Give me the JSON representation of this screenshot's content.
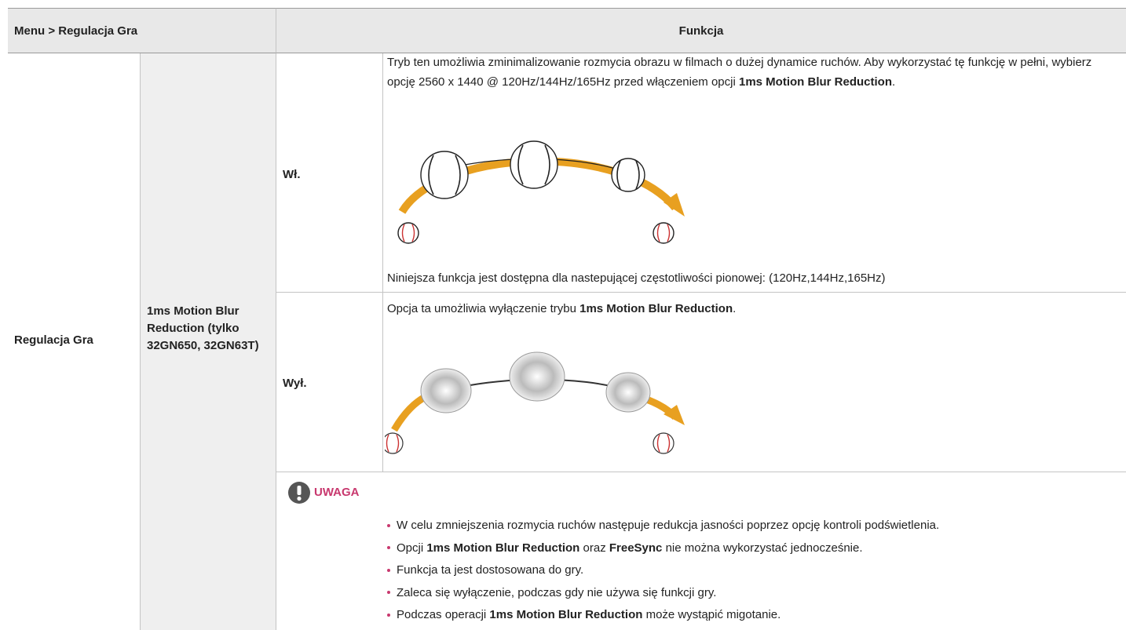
{
  "header": {
    "menu": "Menu > Regulacja Gra",
    "function": "Funkcja"
  },
  "section": "Regulacja Gra",
  "feature": "1ms Motion Blur Reduction (tylko 32GN650, 32GN63T)",
  "on": {
    "label": "Wł.",
    "description": [
      "Tryb ten umożliwia zminimalizowanie rozmycia obrazu w filmach o dużej dynamice ruchów. Aby wykorzystać tę funkcję w pełni, wybierz opcję 2560 x 1440 @ 120Hz/144Hz/165Hz przed włączeniem opcji ",
      "1ms Motion Blur Reduction",
      "."
    ],
    "availability": "Niniejsza funkcja jest dostępna dla nastepującej częstotliwości pionowej: (120Hz,144Hz,165Hz)"
  },
  "off": {
    "label": "Wył.",
    "description": [
      "Opcja ta umożliwia wyłączenie trybu ",
      "1ms Motion Blur Reduction",
      "."
    ]
  },
  "note": {
    "title": "UWAGA",
    "items": [
      [
        "W celu zmniejszenia rozmycia ruchów następuje redukcja jasności poprzez opcję kontroli podświetlenia."
      ],
      [
        "Opcji ",
        "1ms Motion Blur Reduction",
        " oraz ",
        "FreeSync",
        " nie można wykorzystać jednocześnie."
      ],
      [
        "Funkcja ta jest dostosowana do gry."
      ],
      [
        "Zaleca się wyłączenie, podczas gdy nie używa się funkcji gry."
      ],
      [
        "Podczas operacji ",
        "1ms Motion Blur Reduction",
        " może wystąpić migotanie."
      ]
    ]
  }
}
